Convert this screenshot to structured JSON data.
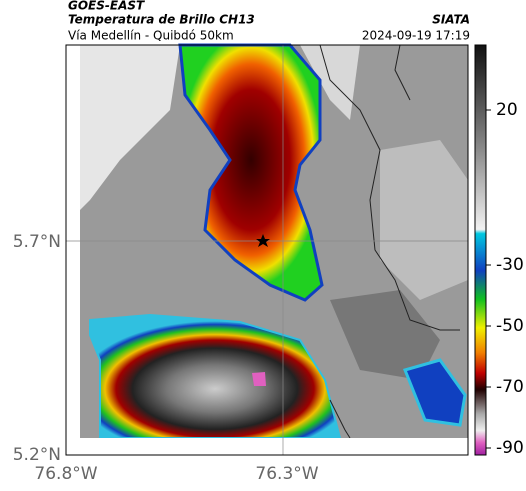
{
  "header": {
    "source": "GOES-EAST",
    "title": "Temperatura de Brillo CH13",
    "subtitle": "Vía Medellín - Quibdó 50km",
    "organization": "SIATA",
    "datetime": "2024-09-19 17:19"
  },
  "map": {
    "lat_labels": [
      "5.7°N",
      "5.2°N"
    ],
    "lon_labels": [
      "76.8°W",
      "76.3°W"
    ]
  },
  "colorbar": {
    "tick_labels": [
      "20",
      "-30",
      "-50",
      "-70",
      "-90"
    ]
  }
}
